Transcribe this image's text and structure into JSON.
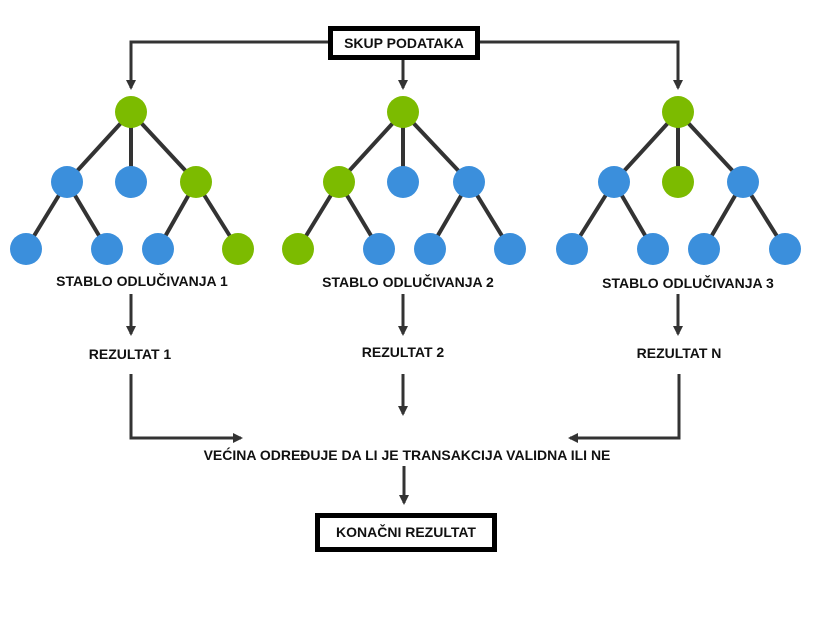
{
  "colors": {
    "leaf_blue": "#3b8fdc",
    "node_green": "#7cbb00",
    "edge": "#333333",
    "arrow": "#333333",
    "box_border": "#000000"
  },
  "top_box": {
    "label": "SKUP PODATAKA"
  },
  "trees": [
    {
      "label": "STABLO ODLUČIVANJA 1",
      "result": "REZULTAT 1",
      "nodes": [
        "green",
        "blue",
        "blue",
        "green",
        "blue",
        "blue",
        "blue",
        "green"
      ]
    },
    {
      "label": "STABLO ODLUČIVANJA 2",
      "result": "REZULTAT 2",
      "nodes": [
        "green",
        "green",
        "blue",
        "blue",
        "green",
        "blue",
        "blue",
        "blue"
      ]
    },
    {
      "label": "STABLO ODLUČIVANJA 3",
      "result": "REZULTAT N",
      "nodes": [
        "green",
        "blue",
        "green",
        "blue",
        "blue",
        "blue",
        "blue",
        "blue"
      ]
    }
  ],
  "majority_text": "VEĆINA ODREĐUJE DA LI JE TRANSAKCIJA VALIDNA ILI NE",
  "final_box": {
    "label": "KONAČNI REZULTAT"
  }
}
